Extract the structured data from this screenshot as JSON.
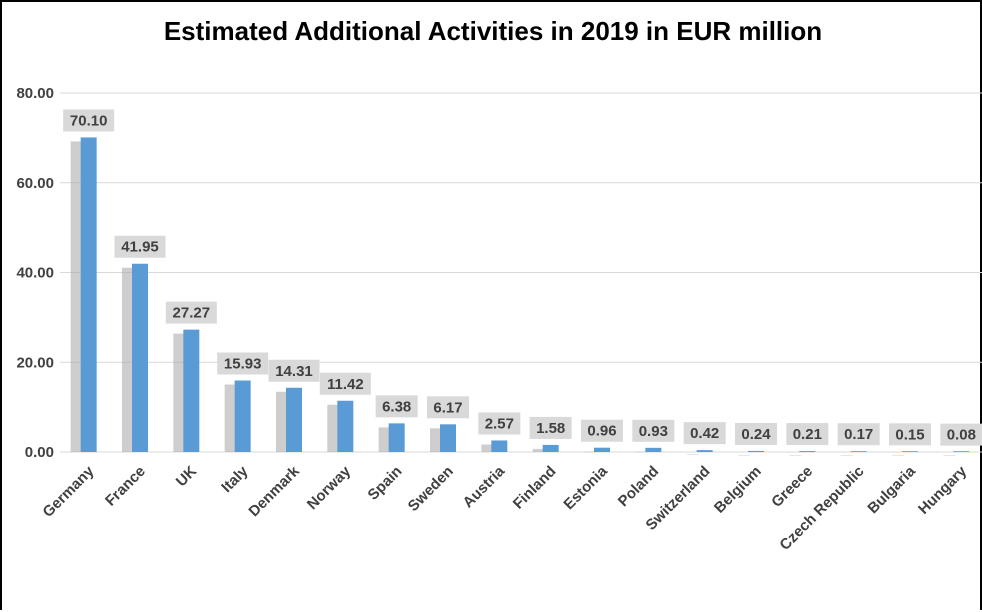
{
  "chart_data": {
    "type": "bar",
    "title": "Estimated Additional Activities in 2019 in EUR million",
    "xlabel": "",
    "ylabel": "",
    "ylim": [
      0,
      80
    ],
    "yticks": [
      "0.00",
      "20.00",
      "40.00",
      "60.00",
      "80.00"
    ],
    "grid": true,
    "legend": "none",
    "categories": [
      "Germany",
      "France",
      "UK",
      "Italy",
      "Denmark",
      "Norway",
      "Spain",
      "Sweden",
      "Austria",
      "Finland",
      "Estonia",
      "Poland",
      "Switzerland",
      "Belgium",
      "Greece",
      "Czech Republic",
      "Bulgaria",
      "Hungary"
    ],
    "values": [
      70.1,
      41.95,
      27.27,
      15.93,
      14.31,
      11.42,
      6.38,
      6.17,
      2.57,
      1.58,
      0.96,
      0.93,
      0.42,
      0.24,
      0.21,
      0.17,
      0.15,
      0.08
    ],
    "data_labels": [
      "70.10",
      "41.95",
      "27.27",
      "15.93",
      "14.31",
      "11.42",
      "6.38",
      "6.17",
      "2.57",
      "1.58",
      "0.96",
      "0.93",
      "0.42",
      "0.24",
      "0.21",
      "0.17",
      "0.15",
      "0.08"
    ],
    "colors": {
      "bar": "#5b9bd5",
      "shadow": "#a6a6a6",
      "grid": "#d9d9d9",
      "label_bg": "#d9d9d9",
      "text": "#404040"
    }
  }
}
